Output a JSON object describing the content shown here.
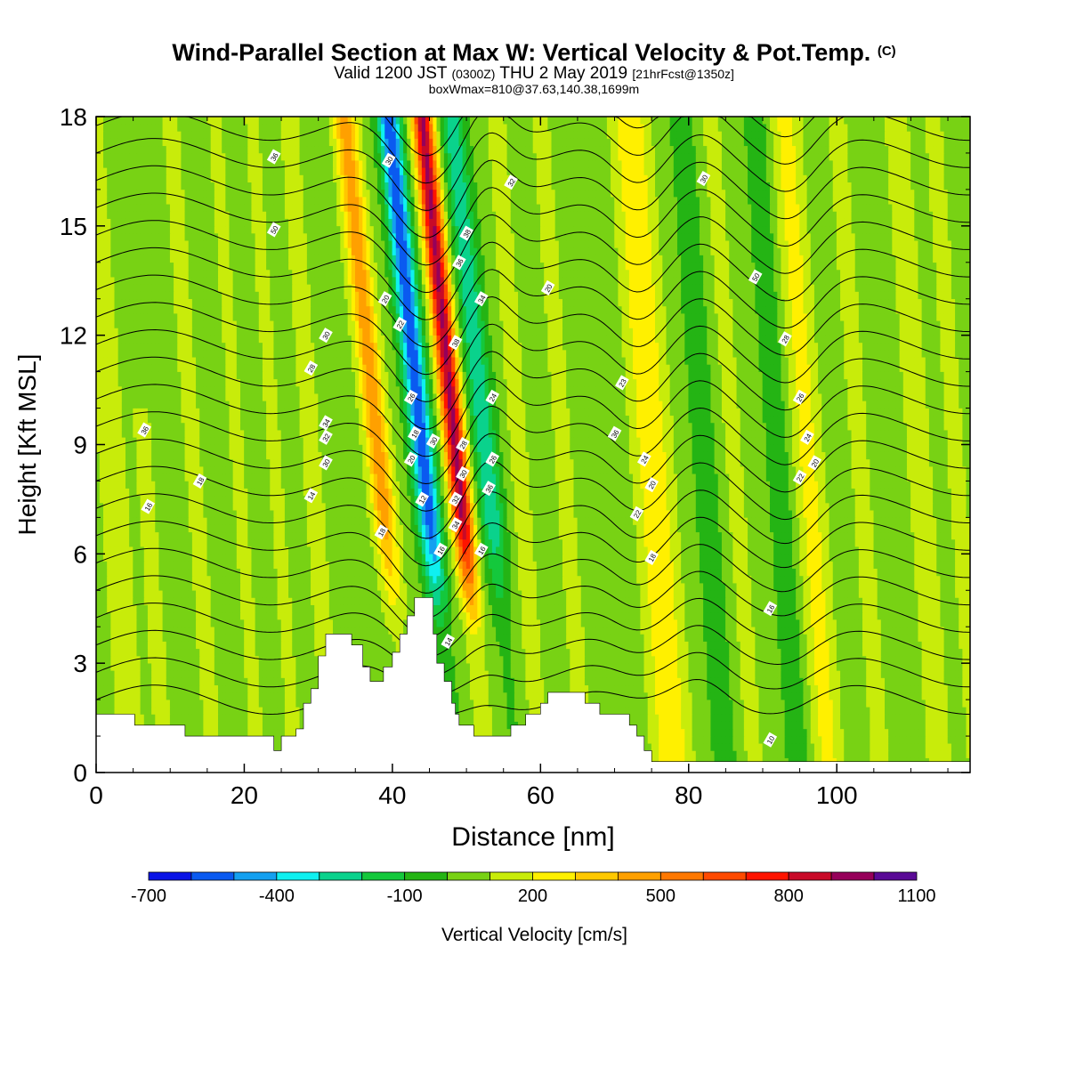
{
  "header": {
    "title": "Wind-Parallel Section at Max W: Vertical Velocity & Pot.Temp.",
    "copyright": "(C)",
    "valid_prefix": "Valid 1200 JST",
    "valid_utc": "(0300Z)",
    "valid_date": "THU 2 May 2019",
    "forecast_info": "[21hrFcst@1350z]",
    "box_info": "boxWmax=810@37.63,140.38,1699m"
  },
  "chart_data": {
    "type": "heatmap",
    "xlabel": "Distance [nm]",
    "ylabel": "Height [Kft MSL]",
    "xlim": [
      0,
      118
    ],
    "ylim": [
      0,
      18
    ],
    "x_ticks": [
      0,
      20,
      40,
      60,
      80,
      100
    ],
    "y_ticks": [
      0,
      3,
      6,
      9,
      12,
      15,
      18
    ],
    "colorbar": {
      "label": "Vertical Velocity [cm/s]",
      "levels": [
        -700,
        -600,
        -500,
        -400,
        -300,
        -200,
        -100,
        0,
        100,
        200,
        300,
        400,
        500,
        600,
        700,
        800,
        900,
        1000,
        1100
      ],
      "tick_labels": [
        "-700",
        "-400",
        "-100",
        "200",
        "500",
        "800",
        "1100"
      ],
      "colors": [
        "#0a14e6",
        "#0a5af0",
        "#14a0f0",
        "#0ff0f0",
        "#0ad28c",
        "#14c83c",
        "#24b414",
        "#78d214",
        "#c8ec0a",
        "#fff000",
        "#ffc800",
        "#ffa000",
        "#ff7800",
        "#ff4a00",
        "#ff1400",
        "#c80a28",
        "#96005a",
        "#5a0a96"
      ]
    },
    "terrain_kft": [
      [
        0,
        1.6
      ],
      [
        5.2,
        1.6
      ],
      [
        5.2,
        1.3
      ],
      [
        12,
        1.3
      ],
      [
        12,
        1.0
      ],
      [
        24,
        1.0
      ],
      [
        24,
        0.6
      ],
      [
        25,
        0.6
      ],
      [
        25,
        1.0
      ],
      [
        27,
        1.0
      ],
      [
        27,
        1.2
      ],
      [
        28,
        1.2
      ],
      [
        28,
        1.9
      ],
      [
        29,
        1.9
      ],
      [
        29,
        2.3
      ],
      [
        30,
        2.3
      ],
      [
        30,
        3.2
      ],
      [
        31,
        3.2
      ],
      [
        31,
        3.8
      ],
      [
        34.5,
        3.8
      ],
      [
        34.5,
        3.5
      ],
      [
        36,
        3.5
      ],
      [
        36,
        2.9
      ],
      [
        37,
        2.9
      ],
      [
        37,
        2.5
      ],
      [
        38.8,
        2.5
      ],
      [
        38.8,
        2.9
      ],
      [
        40,
        2.9
      ],
      [
        40,
        3.3
      ],
      [
        41,
        3.3
      ],
      [
        41,
        3.8
      ],
      [
        42,
        3.8
      ],
      [
        42,
        4.3
      ],
      [
        43,
        4.3
      ],
      [
        43,
        4.8
      ],
      [
        45.5,
        4.8
      ],
      [
        45.5,
        3.8
      ],
      [
        46,
        3.8
      ],
      [
        46,
        3.0
      ],
      [
        47,
        3.0
      ],
      [
        47,
        2.5
      ],
      [
        48,
        2.5
      ],
      [
        48,
        1.9
      ],
      [
        48.5,
        1.9
      ],
      [
        48.5,
        1.6
      ],
      [
        49,
        1.6
      ],
      [
        49,
        1.3
      ],
      [
        51,
        1.3
      ],
      [
        51,
        1.0
      ],
      [
        56,
        1.0
      ],
      [
        56,
        1.3
      ],
      [
        58,
        1.3
      ],
      [
        58,
        1.6
      ],
      [
        60,
        1.6
      ],
      [
        60,
        1.9
      ],
      [
        61,
        1.9
      ],
      [
        61,
        2.2
      ],
      [
        66,
        2.2
      ],
      [
        66,
        1.9
      ],
      [
        68,
        1.9
      ],
      [
        68,
        1.6
      ],
      [
        72,
        1.6
      ],
      [
        72,
        1.3
      ],
      [
        73,
        1.3
      ],
      [
        73,
        1.0
      ],
      [
        74,
        1.0
      ],
      [
        74,
        0.6
      ],
      [
        75,
        0.6
      ],
      [
        75,
        0.3
      ],
      [
        118,
        0.3
      ]
    ],
    "w_features": [
      {
        "x": 2,
        "w": 2.5,
        "v": 100,
        "ztop": 18
      },
      {
        "x": 6.5,
        "w": 1.3,
        "v": 100,
        "ztop": 10
      },
      {
        "x": 13,
        "w": 1.5,
        "v": 100,
        "ztop": 18
      },
      {
        "x": 19,
        "w": 1.2,
        "v": 100,
        "ztop": 18
      },
      {
        "x": 24,
        "w": 1.2,
        "v": 100,
        "ztop": 18
      },
      {
        "x": 29,
        "w": 1.3,
        "v": 140,
        "ztop": 18
      },
      {
        "x": 38,
        "w": 1.6,
        "v": 420,
        "ztop": 18
      },
      {
        "x": 44,
        "w": 1.5,
        "v": -620,
        "ztop": 18
      },
      {
        "x": 48.5,
        "w": 1.4,
        "v": 880,
        "ztop": 18
      },
      {
        "x": 52.5,
        "w": 1.6,
        "v": -320,
        "ztop": 18
      },
      {
        "x": 57,
        "w": 1.5,
        "v": 110,
        "ztop": 18
      },
      {
        "x": 63,
        "w": 1.4,
        "v": 110,
        "ztop": 18
      },
      {
        "x": 75,
        "w": 2.5,
        "v": 250,
        "ztop": 18
      },
      {
        "x": 82,
        "w": 1.5,
        "v": -120,
        "ztop": 18
      },
      {
        "x": 86,
        "w": 1.5,
        "v": 100,
        "ztop": 18
      },
      {
        "x": 92,
        "w": 1.5,
        "v": -120,
        "ztop": 18
      },
      {
        "x": 96,
        "w": 2.0,
        "v": 200,
        "ztop": 18
      },
      {
        "x": 103,
        "w": 1.6,
        "v": 100,
        "ztop": 18
      },
      {
        "x": 111,
        "w": 2.0,
        "v": 110,
        "ztop": 18
      },
      {
        "x": 116,
        "w": 1.5,
        "v": 100,
        "ztop": 18
      }
    ],
    "theta_labels": [
      {
        "x": 7,
        "z": 7.3,
        "text": "16"
      },
      {
        "x": 6.5,
        "z": 9.4,
        "text": "36"
      },
      {
        "x": 14,
        "z": 8.0,
        "text": "18"
      },
      {
        "x": 29,
        "z": 7.6,
        "text": "14"
      },
      {
        "x": 24,
        "z": 14.9,
        "text": "50"
      },
      {
        "x": 24,
        "z": 16.9,
        "text": "36"
      },
      {
        "x": 31,
        "z": 12.0,
        "text": "30"
      },
      {
        "x": 29,
        "z": 11.1,
        "text": "28"
      },
      {
        "x": 31,
        "z": 9.6,
        "text": "34"
      },
      {
        "x": 31,
        "z": 9.2,
        "text": "32"
      },
      {
        "x": 31,
        "z": 8.5,
        "text": "30"
      },
      {
        "x": 38.5,
        "z": 6.6,
        "text": "18"
      },
      {
        "x": 39,
        "z": 13.0,
        "text": "20"
      },
      {
        "x": 39.5,
        "z": 16.8,
        "text": "30"
      },
      {
        "x": 41,
        "z": 12.3,
        "text": "22"
      },
      {
        "x": 42.5,
        "z": 10.3,
        "text": "26"
      },
      {
        "x": 43,
        "z": 9.3,
        "text": "18"
      },
      {
        "x": 42.5,
        "z": 8.6,
        "text": "20"
      },
      {
        "x": 44,
        "z": 7.5,
        "text": "12"
      },
      {
        "x": 45.5,
        "z": 9.1,
        "text": "30"
      },
      {
        "x": 46.5,
        "z": 6.1,
        "text": "16"
      },
      {
        "x": 47.5,
        "z": 3.6,
        "text": "14"
      },
      {
        "x": 48.5,
        "z": 7.5,
        "text": "32"
      },
      {
        "x": 48.5,
        "z": 6.8,
        "text": "34"
      },
      {
        "x": 48.5,
        "z": 11.8,
        "text": "38"
      },
      {
        "x": 49,
        "z": 14.0,
        "text": "36"
      },
      {
        "x": 50,
        "z": 14.8,
        "text": "38"
      },
      {
        "x": 49.5,
        "z": 9.0,
        "text": "28"
      },
      {
        "x": 49.5,
        "z": 8.2,
        "text": "30"
      },
      {
        "x": 52,
        "z": 13.0,
        "text": "34"
      },
      {
        "x": 53.5,
        "z": 10.3,
        "text": "24"
      },
      {
        "x": 53.5,
        "z": 8.6,
        "text": "26"
      },
      {
        "x": 53,
        "z": 7.8,
        "text": "36"
      },
      {
        "x": 52,
        "z": 6.1,
        "text": "16"
      },
      {
        "x": 56,
        "z": 16.2,
        "text": "32"
      },
      {
        "x": 61,
        "z": 13.3,
        "text": "20"
      },
      {
        "x": 71,
        "z": 10.7,
        "text": "23"
      },
      {
        "x": 70,
        "z": 9.3,
        "text": "36"
      },
      {
        "x": 74,
        "z": 8.6,
        "text": "24"
      },
      {
        "x": 75,
        "z": 7.9,
        "text": "20"
      },
      {
        "x": 73,
        "z": 7.1,
        "text": "22"
      },
      {
        "x": 75,
        "z": 5.9,
        "text": "18"
      },
      {
        "x": 82,
        "z": 16.3,
        "text": "30"
      },
      {
        "x": 89,
        "z": 13.6,
        "text": "50"
      },
      {
        "x": 93,
        "z": 11.9,
        "text": "28"
      },
      {
        "x": 95,
        "z": 10.3,
        "text": "26"
      },
      {
        "x": 96,
        "z": 9.2,
        "text": "24"
      },
      {
        "x": 97,
        "z": 8.5,
        "text": "20"
      },
      {
        "x": 95,
        "z": 8.1,
        "text": "22"
      },
      {
        "x": 91,
        "z": 4.5,
        "text": "16"
      },
      {
        "x": 91,
        "z": 0.9,
        "text": "10"
      }
    ]
  }
}
